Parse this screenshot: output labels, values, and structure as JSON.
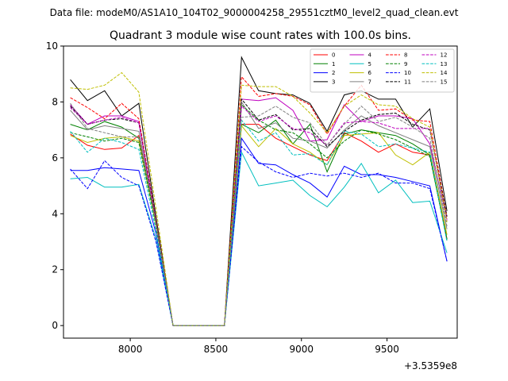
{
  "chart_data": {
    "type": "line",
    "suptitle": "Data file: modeM0/AS1A10_104T02_9000004258_29551cztM0_level2_quad_clean.evt",
    "title": "Quadrant 3 module wise count rates with 100.0s bins.",
    "xlabel": "",
    "ylabel": "",
    "x_offset_label": "+3.5359e8",
    "xlim": [
      7610,
      9910
    ],
    "ylim": [
      -0.45,
      10.0
    ],
    "x_ticks": [
      8000,
      8500,
      9000,
      9500
    ],
    "x_tick_labels": [
      "8000",
      "8500",
      "9000",
      "9500"
    ],
    "y_ticks": [
      0,
      2,
      4,
      6,
      8,
      10
    ],
    "y_tick_labels": [
      "0",
      "2",
      "4",
      "6",
      "8",
      "10"
    ],
    "grid": false,
    "legend_position": "top-right",
    "legend_columns": 4,
    "x": [
      7650,
      7750,
      7850,
      7950,
      8050,
      8150,
      8250,
      8350,
      8450,
      8550,
      8650,
      8750,
      8850,
      8950,
      9050,
      9150,
      9250,
      9350,
      9450,
      9550,
      9650,
      9750,
      9850
    ],
    "series": [
      {
        "name": "0",
        "color": "#ff0000",
        "dash": "solid",
        "values": [
          6.85,
          6.45,
          6.3,
          6.35,
          6.8,
          3.6,
          0,
          0,
          0,
          0,
          7.2,
          7.2,
          6.7,
          6.4,
          6.1,
          5.9,
          6.9,
          6.6,
          6.2,
          6.5,
          6.2,
          6.1,
          3.1
        ]
      },
      {
        "name": "1",
        "color": "#008000",
        "dash": "solid",
        "values": [
          7.2,
          7.0,
          7.3,
          7.1,
          6.7,
          3.7,
          0,
          0,
          0,
          0,
          7.2,
          6.9,
          7.35,
          6.5,
          7.2,
          5.5,
          6.85,
          7.0,
          6.9,
          6.8,
          6.5,
          6.1,
          3.05
        ]
      },
      {
        "name": "2",
        "color": "#0000ff",
        "dash": "solid",
        "values": [
          5.55,
          5.55,
          5.65,
          5.6,
          5.55,
          3.3,
          0,
          0,
          0,
          0,
          6.7,
          5.8,
          5.75,
          5.4,
          5.1,
          4.6,
          5.7,
          5.4,
          5.4,
          5.3,
          5.15,
          5.0,
          2.3
        ]
      },
      {
        "name": "3",
        "color": "#000000",
        "dash": "solid",
        "values": [
          8.8,
          8.05,
          8.4,
          7.5,
          7.95,
          3.9,
          0,
          0,
          0,
          0,
          9.6,
          8.4,
          8.3,
          8.25,
          7.95,
          6.95,
          8.25,
          8.4,
          8.1,
          8.1,
          7.1,
          7.75,
          4.1
        ]
      },
      {
        "name": "4",
        "color": "#bf00bf",
        "dash": "solid",
        "values": [
          7.9,
          7.2,
          7.5,
          7.5,
          7.3,
          3.7,
          0,
          0,
          0,
          0,
          8.1,
          8.05,
          8.15,
          7.7,
          6.6,
          6.65,
          7.9,
          7.3,
          7.5,
          7.5,
          7.4,
          6.5,
          3.8
        ]
      },
      {
        "name": "5",
        "color": "#00bfbf",
        "dash": "solid",
        "values": [
          5.25,
          5.3,
          4.95,
          4.95,
          5.05,
          3.1,
          0,
          0,
          0,
          0,
          6.2,
          5.0,
          5.1,
          5.2,
          4.65,
          4.25,
          4.95,
          5.8,
          4.75,
          5.2,
          4.4,
          4.45,
          2.6
        ]
      },
      {
        "name": "6",
        "color": "#bfbf00",
        "dash": "solid",
        "values": [
          6.8,
          6.55,
          6.7,
          6.75,
          6.6,
          3.6,
          0,
          0,
          0,
          0,
          7.15,
          6.4,
          7.05,
          6.5,
          6.2,
          5.75,
          6.8,
          6.85,
          6.9,
          6.1,
          5.75,
          6.2,
          3.25
        ]
      },
      {
        "name": "7",
        "color": "#808080",
        "dash": "solid",
        "values": [
          7.7,
          7.0,
          7.15,
          7.05,
          6.95,
          3.75,
          0,
          0,
          0,
          0,
          8.0,
          7.05,
          7.25,
          6.7,
          6.6,
          6.35,
          7.0,
          7.5,
          7.15,
          6.9,
          6.65,
          6.4,
          3.45
        ]
      },
      {
        "name": "8",
        "color": "#ff0000",
        "dash": "dashed",
        "values": [
          8.15,
          7.8,
          7.4,
          7.95,
          7.4,
          3.8,
          0,
          0,
          0,
          0,
          8.9,
          8.2,
          8.3,
          8.2,
          7.9,
          6.85,
          7.85,
          8.6,
          7.7,
          7.75,
          7.35,
          7.3,
          3.9
        ]
      },
      {
        "name": "9",
        "color": "#008000",
        "dash": "dashed",
        "values": [
          6.9,
          6.75,
          6.6,
          6.7,
          6.55,
          3.6,
          0,
          0,
          0,
          0,
          7.9,
          7.35,
          7.0,
          6.9,
          6.5,
          6.0,
          6.6,
          7.0,
          6.85,
          6.65,
          6.35,
          6.05,
          3.1
        ]
      },
      {
        "name": "10",
        "color": "#0000ff",
        "dash": "dashed",
        "values": [
          5.6,
          4.9,
          5.9,
          5.3,
          5.0,
          3.0,
          0,
          0,
          0,
          0,
          6.4,
          5.85,
          5.5,
          5.3,
          5.45,
          5.35,
          5.45,
          5.3,
          5.45,
          5.1,
          5.1,
          4.9,
          2.3
        ]
      },
      {
        "name": "11",
        "color": "#000000",
        "dash": "dashed",
        "values": [
          7.85,
          7.2,
          7.35,
          7.4,
          7.25,
          3.75,
          0,
          0,
          0,
          0,
          8.1,
          7.35,
          7.55,
          7.0,
          7.05,
          6.4,
          6.95,
          7.35,
          7.55,
          7.6,
          7.2,
          7.0,
          3.9
        ]
      },
      {
        "name": "12",
        "color": "#bf00bf",
        "dash": "dashed",
        "values": [
          7.8,
          7.2,
          7.35,
          7.45,
          7.25,
          3.7,
          0,
          0,
          0,
          0,
          7.85,
          7.3,
          7.5,
          7.05,
          6.9,
          6.45,
          7.25,
          7.3,
          7.25,
          7.05,
          7.05,
          7.05,
          3.75
        ]
      },
      {
        "name": "13",
        "color": "#00bfbf",
        "dash": "dashed",
        "values": [
          6.95,
          6.2,
          6.7,
          6.55,
          6.3,
          3.4,
          0,
          0,
          0,
          0,
          7.35,
          6.6,
          6.9,
          6.1,
          6.15,
          5.75,
          6.95,
          6.85,
          6.4,
          6.5,
          6.35,
          6.2,
          3.0
        ]
      },
      {
        "name": "14",
        "color": "#bfbf00",
        "dash": "dashed",
        "values": [
          8.5,
          8.45,
          8.6,
          9.05,
          8.35,
          4.2,
          0,
          0,
          0,
          0,
          8.6,
          8.55,
          8.55,
          8.2,
          7.6,
          6.9,
          7.85,
          8.25,
          7.9,
          7.85,
          7.4,
          7.1,
          3.7
        ]
      },
      {
        "name": "15",
        "color": "#808080",
        "dash": "dashed",
        "values": [
          7.95,
          7.05,
          6.9,
          6.75,
          6.75,
          3.7,
          0,
          0,
          0,
          0,
          7.45,
          7.5,
          7.85,
          7.45,
          7.25,
          6.45,
          7.2,
          7.85,
          7.3,
          7.45,
          7.1,
          6.7,
          3.55
        ]
      }
    ]
  }
}
